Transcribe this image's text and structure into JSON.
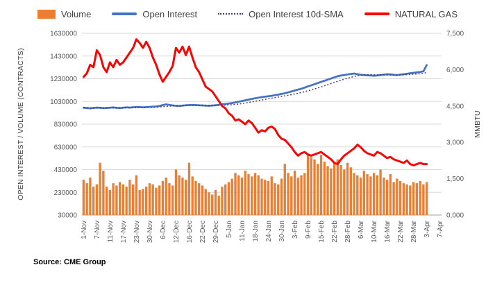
{
  "legend": [
    {
      "label": "Volume",
      "type": "bar",
      "color": "#ED7D31"
    },
    {
      "label": "Open Interest",
      "type": "line",
      "color": "#4472C4"
    },
    {
      "label": "Open Interest 10d-SMA",
      "type": "dotted-line",
      "color": "#4B3B70"
    },
    {
      "label": "NATURAL GAS",
      "type": "line",
      "color": "#FF0000"
    }
  ],
  "axes": {
    "left_title": "OPEN INTEREST / VOLUME (CONTRACTS)",
    "right_title": "MMBTU",
    "left_ticks": [
      "30000",
      "230000",
      "430000",
      "630000",
      "830000",
      "1030000",
      "1230000",
      "1430000",
      "1630000"
    ],
    "right_ticks": [
      "0,000",
      "1,500",
      "3,000",
      "4,500",
      "6,000",
      "7,500"
    ]
  },
  "source": "Source: CME Group",
  "chart_data": {
    "type": "combo",
    "title": "",
    "grid": true,
    "legend_position": "top",
    "x_domain_count": 109,
    "x_tick_labels": [
      "1-Nov",
      "7-Nov",
      "11-Nov",
      "17-Nov",
      "23-Nov",
      "30-Nov",
      "6-Dec",
      "12-Dec",
      "16-Dec",
      "22-Dec",
      "29-Dec",
      "5-Jan",
      "11-Jan",
      "18-Jan",
      "24-Jan",
      "30-Jan",
      "3-Feb",
      "9-Feb",
      "15-Feb",
      "22-Feb",
      "28-Feb",
      "6-Mar",
      "10-Mar",
      "16-Mar",
      "22-Mar",
      "28-Mar",
      "3-Apr",
      "7-Apr"
    ],
    "x_tick_indices": [
      0,
      4,
      8,
      12,
      16,
      20,
      24,
      28,
      32,
      36,
      40,
      44,
      48,
      52,
      56,
      60,
      64,
      68,
      72,
      76,
      80,
      84,
      88,
      92,
      96,
      100,
      104,
      108
    ],
    "left_axis": {
      "label": "OPEN INTEREST / VOLUME (CONTRACTS)",
      "min": 30000,
      "max": 1630000,
      "tick_step": 200000
    },
    "right_axis": {
      "label": "MMBTU",
      "min": 0,
      "max": 7500,
      "tick_step": 1500
    },
    "x": [
      "1-Nov",
      "2-Nov",
      "3-Nov",
      "4-Nov",
      "7-Nov",
      "8-Nov",
      "9-Nov",
      "10-Nov",
      "11-Nov",
      "14-Nov",
      "15-Nov",
      "16-Nov",
      "17-Nov",
      "18-Nov",
      "21-Nov",
      "22-Nov",
      "23-Nov",
      "25-Nov",
      "28-Nov",
      "29-Nov",
      "30-Nov",
      "1-Dec",
      "2-Dec",
      "5-Dec",
      "6-Dec",
      "7-Dec",
      "8-Dec",
      "9-Dec",
      "12-Dec",
      "13-Dec",
      "14-Dec",
      "15-Dec",
      "16-Dec",
      "19-Dec",
      "20-Dec",
      "21-Dec",
      "22-Dec",
      "23-Dec",
      "27-Dec",
      "28-Dec",
      "29-Dec",
      "30-Dec",
      "3-Jan",
      "4-Jan",
      "5-Jan",
      "6-Jan",
      "9-Jan",
      "10-Jan",
      "11-Jan",
      "12-Jan",
      "13-Jan",
      "17-Jan",
      "18-Jan",
      "19-Jan",
      "20-Jan",
      "23-Jan",
      "24-Jan",
      "25-Jan",
      "26-Jan",
      "27-Jan",
      "30-Jan",
      "31-Jan",
      "1-Feb",
      "2-Feb",
      "3-Feb",
      "6-Feb",
      "7-Feb",
      "8-Feb",
      "9-Feb",
      "10-Feb",
      "13-Feb",
      "14-Feb",
      "15-Feb",
      "16-Feb",
      "17-Feb",
      "21-Feb",
      "22-Feb",
      "23-Feb",
      "24-Feb",
      "27-Feb",
      "28-Feb",
      "1-Mar",
      "2-Mar",
      "3-Mar",
      "6-Mar",
      "7-Mar",
      "8-Mar",
      "9-Mar",
      "10-Mar",
      "13-Mar",
      "14-Mar",
      "15-Mar",
      "16-Mar",
      "17-Mar",
      "20-Mar",
      "21-Mar",
      "22-Mar",
      "23-Mar",
      "24-Mar",
      "27-Mar",
      "28-Mar",
      "29-Mar",
      "30-Mar",
      "31-Mar",
      "3-Apr"
    ],
    "series": [
      {
        "name": "Volume",
        "type": "bar",
        "axis": "left",
        "color": "#ED7D31",
        "values": [
          340000,
          310000,
          360000,
          280000,
          300000,
          490000,
          420000,
          280000,
          250000,
          310000,
          290000,
          320000,
          300000,
          280000,
          340000,
          300000,
          380000,
          250000,
          260000,
          280000,
          310000,
          300000,
          270000,
          290000,
          330000,
          360000,
          310000,
          290000,
          430000,
          380000,
          360000,
          340000,
          490000,
          370000,
          330000,
          310000,
          290000,
          260000,
          230000,
          210000,
          250000,
          200000,
          280000,
          300000,
          320000,
          350000,
          400000,
          380000,
          360000,
          420000,
          390000,
          370000,
          400000,
          380000,
          350000,
          340000,
          330000,
          370000,
          310000,
          300000,
          350000,
          480000,
          400000,
          370000,
          420000,
          360000,
          380000,
          400000,
          560000,
          540000,
          520000,
          480000,
          560000,
          500000,
          460000,
          440000,
          490000,
          520000,
          470000,
          430000,
          490000,
          450000,
          400000,
          380000,
          360000,
          420000,
          390000,
          370000,
          400000,
          380000,
          430000,
          360000,
          340000,
          390000,
          320000,
          350000,
          330000,
          310000,
          300000,
          290000,
          320000,
          310000,
          330000,
          300000,
          320000
        ]
      },
      {
        "name": "Open Interest",
        "type": "line",
        "axis": "left",
        "color": "#4472C4",
        "width": 2.75,
        "values": [
          975000,
          972000,
          970000,
          973000,
          976000,
          974000,
          971000,
          973000,
          975000,
          977000,
          974000,
          972000,
          975000,
          978000,
          976000,
          979000,
          981000,
          980000,
          978000,
          980000,
          982000,
          984000,
          986000,
          990000,
          998000,
          1004000,
          1000000,
          995000,
          992000,
          990000,
          993000,
          996000,
          998000,
          1000000,
          998000,
          996000,
          995000,
          993000,
          992000,
          994000,
          997000,
          1000000,
          1005000,
          1008000,
          1012000,
          1016000,
          1022000,
          1028000,
          1034000,
          1040000,
          1046000,
          1052000,
          1058000,
          1063000,
          1068000,
          1072000,
          1076000,
          1080000,
          1085000,
          1090000,
          1096000,
          1102000,
          1110000,
          1118000,
          1126000,
          1134000,
          1142000,
          1152000,
          1162000,
          1172000,
          1182000,
          1192000,
          1202000,
          1212000,
          1222000,
          1232000,
          1242000,
          1252000,
          1258000,
          1262000,
          1268000,
          1272000,
          1276000,
          1270000,
          1265000,
          1262000,
          1260000,
          1258000,
          1256000,
          1258000,
          1262000,
          1266000,
          1270000,
          1268000,
          1264000,
          1262000,
          1266000,
          1270000,
          1274000,
          1278000,
          1282000,
          1286000,
          1290000,
          1295000,
          1350000
        ]
      },
      {
        "name": "Open Interest 10d-SMA",
        "type": "line",
        "style": "dotted",
        "axis": "left",
        "color": "#4B3B70",
        "width": 1.5,
        "derived": "10-day simple moving average of Open Interest"
      },
      {
        "name": "NATURAL GAS",
        "type": "line",
        "axis": "right",
        "color": "#FF0000",
        "width": 3,
        "values": [
          5700,
          5850,
          6200,
          6100,
          6800,
          6600,
          6100,
          5900,
          6300,
          6100,
          6400,
          6200,
          6300,
          6500,
          6700,
          6900,
          7250,
          7100,
          6900,
          7150,
          6900,
          6500,
          6200,
          5800,
          5500,
          5700,
          5900,
          6150,
          6900,
          6700,
          6950,
          6600,
          6950,
          6500,
          6100,
          5900,
          5600,
          5300,
          5200,
          5100,
          4900,
          4700,
          4500,
          4400,
          4200,
          4100,
          3900,
          3950,
          3850,
          3750,
          3900,
          3800,
          3600,
          3400,
          3500,
          3450,
          3600,
          3650,
          3550,
          3300,
          3150,
          3100,
          2950,
          2800,
          2600,
          2450,
          2550,
          2600,
          2500,
          2450,
          2500,
          2550,
          2600,
          2500,
          2400,
          2300,
          2150,
          2100,
          2300,
          2450,
          2550,
          2650,
          2750,
          2900,
          2800,
          2650,
          2550,
          2500,
          2450,
          2600,
          2550,
          2450,
          2350,
          2400,
          2300,
          2250,
          2200,
          2150,
          2250,
          2100,
          2050,
          2100,
          2150,
          2100,
          2100
        ]
      }
    ]
  }
}
